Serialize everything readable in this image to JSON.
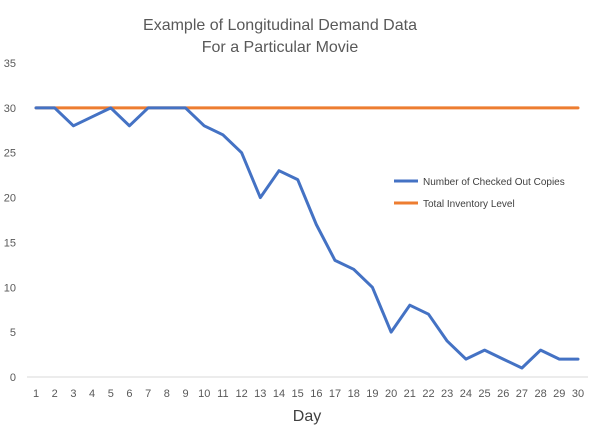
{
  "chart_data": {
    "type": "line",
    "title": [
      "Example of Longitudinal Demand Data",
      "For a Particular Movie"
    ],
    "xlabel": "Day",
    "ylabel": "",
    "x": [
      1,
      2,
      3,
      4,
      5,
      6,
      7,
      8,
      9,
      10,
      11,
      12,
      13,
      14,
      15,
      16,
      17,
      18,
      19,
      20,
      21,
      22,
      23,
      24,
      25,
      26,
      27,
      28,
      29,
      30
    ],
    "ylim": [
      0,
      35
    ],
    "yticks": [
      0,
      5,
      10,
      15,
      20,
      25,
      30,
      35
    ],
    "grid": false,
    "legend_position": "right",
    "series": [
      {
        "name": "Number of Checked Out Copies",
        "color": "#4472C4",
        "values": [
          30,
          30,
          28,
          29,
          30,
          28,
          30,
          30,
          30,
          28,
          27,
          25,
          20,
          23,
          22,
          17,
          13,
          12,
          10,
          5,
          8,
          7,
          4,
          2,
          3,
          2,
          1,
          3,
          2,
          2
        ]
      },
      {
        "name": "Total Inventory Level",
        "color": "#ED7D31",
        "values": [
          30,
          30,
          30,
          30,
          30,
          30,
          30,
          30,
          30,
          30,
          30,
          30,
          30,
          30,
          30,
          30,
          30,
          30,
          30,
          30,
          30,
          30,
          30,
          30,
          30,
          30,
          30,
          30,
          30,
          30
        ]
      }
    ]
  }
}
